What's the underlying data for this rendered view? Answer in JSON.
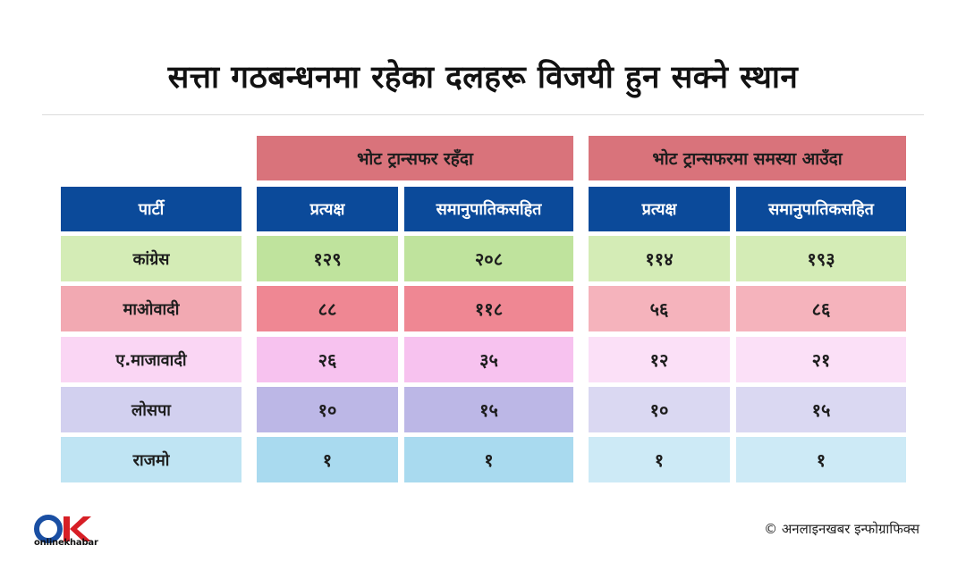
{
  "title": "सत्ता गठबन्धनमा रहेका दलहरू विजयी हुन सक्ने स्थान",
  "groups": [
    {
      "label": "भोट ट्रान्सफर रहँदा"
    },
    {
      "label": "भोट ट्रान्सफरमा समस्या आउँदा"
    }
  ],
  "party_header": "पार्टी",
  "column_headers": [
    "प्रत्यक्ष",
    "समानुपातिकसहित",
    "प्रत्यक्ष",
    "समानुपातिकसहित"
  ],
  "rows": [
    {
      "party": "कांग्रेस",
      "values": [
        "१२९",
        "२०८",
        "११४",
        "१९३"
      ]
    },
    {
      "party": "माओवादी",
      "values": [
        "८८",
        "११८",
        "५६",
        "८६"
      ]
    },
    {
      "party": "ए.माजावादी",
      "values": [
        "२६",
        "३५",
        "१२",
        "२१"
      ]
    },
    {
      "party": "लोसपा",
      "values": [
        "१०",
        "१५",
        "१०",
        "१५"
      ]
    },
    {
      "party": "राजमो",
      "values": [
        "१",
        "१",
        "१",
        "१"
      ]
    }
  ],
  "credit": "© अनलाइनखबर इन्फोग्राफिक्स",
  "logo": {
    "mark": "OK",
    "text": "onlinekhabar"
  },
  "colors": {
    "header_blue": "#0b4a9a",
    "group_header": "#d9737b",
    "rows_left": [
      "#d4ecb6",
      "#f2a9b2",
      "#fad6f4",
      "#d2d0ef",
      "#bfe4f3"
    ],
    "rows_mid": [
      "#bfe39d",
      "#ef8793",
      "#f7c2ef",
      "#bcb7e6",
      "#a9daef"
    ],
    "rows_right": [
      "#d4ecb6",
      "#f5b3bc",
      "#fbe0f7",
      "#dad8f2",
      "#cdeaf6"
    ]
  }
}
